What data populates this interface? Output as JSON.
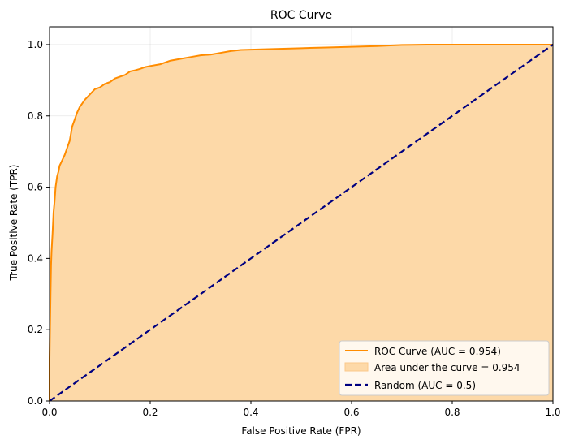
{
  "chart_data": {
    "type": "line",
    "title": "ROC Curve",
    "xlabel": "False Positive Rate (FPR)",
    "ylabel": "True Positive Rate (TPR)",
    "xlim": [
      0.0,
      1.0
    ],
    "ylim": [
      0.0,
      1.05
    ],
    "xticks": [
      "0.0",
      "0.2",
      "0.4",
      "0.6",
      "0.8",
      "1.0"
    ],
    "xtick_values": [
      0.0,
      0.2,
      0.4,
      0.6,
      0.8,
      1.0
    ],
    "yticks": [
      "0.0",
      "0.2",
      "0.4",
      "0.6",
      "0.8",
      "1.0"
    ],
    "ytick_values": [
      0.0,
      0.2,
      0.4,
      0.6,
      0.8,
      1.0
    ],
    "grid": true,
    "legend_position": "lower-right",
    "series": [
      {
        "name": "ROC Curve (AUC = 0.954)",
        "style": "solid",
        "color": "#ff8c00",
        "x": [
          0.0,
          0.0,
          0.002,
          0.003,
          0.004,
          0.006,
          0.008,
          0.01,
          0.012,
          0.015,
          0.018,
          0.02,
          0.025,
          0.03,
          0.035,
          0.04,
          0.045,
          0.05,
          0.055,
          0.06,
          0.065,
          0.07,
          0.08,
          0.09,
          0.1,
          0.11,
          0.12,
          0.13,
          0.14,
          0.15,
          0.16,
          0.17,
          0.18,
          0.19,
          0.2,
          0.22,
          0.24,
          0.26,
          0.28,
          0.3,
          0.32,
          0.34,
          0.36,
          0.38,
          0.4,
          0.45,
          0.5,
          0.55,
          0.6,
          0.65,
          0.7,
          0.75,
          0.8,
          0.9,
          1.0
        ],
        "y": [
          0.0,
          0.12,
          0.3,
          0.38,
          0.42,
          0.47,
          0.53,
          0.56,
          0.6,
          0.63,
          0.645,
          0.66,
          0.675,
          0.69,
          0.71,
          0.73,
          0.77,
          0.79,
          0.81,
          0.825,
          0.835,
          0.845,
          0.86,
          0.875,
          0.88,
          0.89,
          0.895,
          0.905,
          0.91,
          0.915,
          0.925,
          0.928,
          0.932,
          0.937,
          0.94,
          0.945,
          0.955,
          0.96,
          0.965,
          0.97,
          0.972,
          0.977,
          0.982,
          0.985,
          0.986,
          0.988,
          0.99,
          0.992,
          0.994,
          0.996,
          0.999,
          1.0,
          1.0,
          1.0,
          1.0
        ]
      },
      {
        "name": "Area under the curve = 0.954",
        "style": "fill",
        "color": "#fdd9a8"
      },
      {
        "name": "Random (AUC = 0.5)",
        "style": "dashed",
        "color": "#000080",
        "x": [
          0.0,
          1.0
        ],
        "y": [
          0.0,
          1.0
        ]
      }
    ]
  }
}
